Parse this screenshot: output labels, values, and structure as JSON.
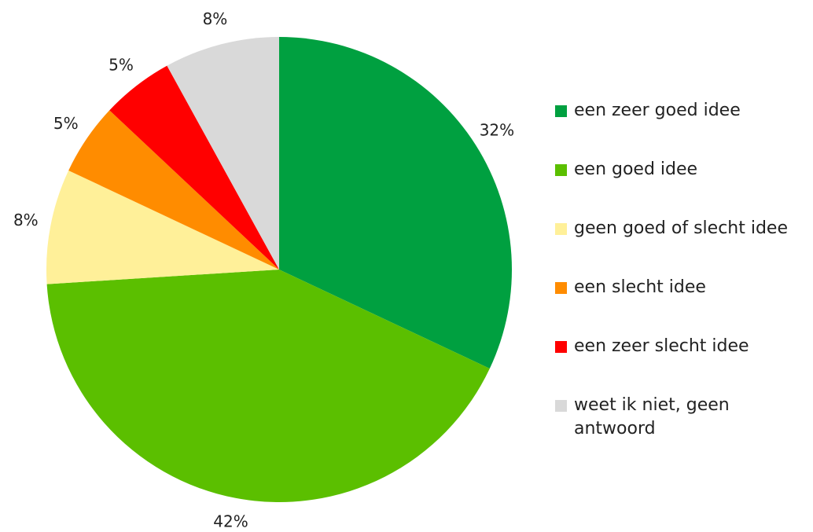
{
  "chart_data": {
    "type": "pie",
    "categories": [
      "een zeer goed idee",
      "een goed idee",
      "geen goed of slecht idee",
      "een slecht idee",
      "een zeer slecht idee",
      "weet ik niet, geen antwoord"
    ],
    "values": [
      32,
      42,
      8,
      5,
      5,
      8
    ],
    "value_labels": [
      "32%",
      "42%",
      "8%",
      "5%",
      "5%",
      "8%"
    ],
    "colors": [
      "#00a040",
      "#5bbf00",
      "#fff099",
      "#ff8c00",
      "#ff0000",
      "#d9d9d9"
    ],
    "legend": "right"
  }
}
